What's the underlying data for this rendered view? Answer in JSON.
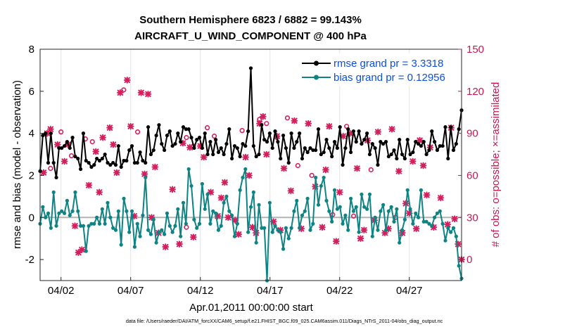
{
  "chart_data": {
    "type": "line",
    "title_line1": "Southern Hemisphere 6823 / 6882 = 99.143%",
    "title_line2": "AIRCRAFT_U_WIND_COMPONENT @ 400 hPa",
    "ylabel": "rmse and bias (model - observation)",
    "ylabel_right": "# of obs: o=possible; ×=assimilated",
    "xlabel": "Apr.01,2011 00:00:00 start",
    "footnote": "data file: /Users/raeder/DAI/ATM_forcXX/CAM6_setup/f.e21.FHIST_BGC.f09_025.CAM6assim.011/Diags_NTrS_2011-04/obs_diag_output.nc",
    "xlim": [
      0.5,
      30.75
    ],
    "ylim": [
      -3,
      8
    ],
    "ylim_right": [
      -15,
      150
    ],
    "yticks": [
      -2,
      0,
      2,
      4,
      6,
      8
    ],
    "yticks_right": [
      0,
      30,
      60,
      90,
      120,
      150
    ],
    "xticks": [
      2,
      7,
      12,
      17,
      22,
      27
    ],
    "xtick_labels": [
      "04/02",
      "04/07",
      "04/12",
      "04/17",
      "04/22",
      "04/27"
    ],
    "zero_line": 0,
    "colors": {
      "rmse": "#000000",
      "bias": "#0e8383",
      "obs": "#d61e5e",
      "legend_text": "#0a4fe0",
      "right_axis": "#c8174d"
    },
    "series": [
      {
        "name": "rmse grand pr = 3.3318",
        "key": "rmse",
        "values": [
          2.2,
          3.9,
          4.0,
          2.6,
          4.0,
          2.6,
          1.9,
          3.3,
          3.3,
          3.4,
          3.6,
          3.3,
          3.8,
          2.9,
          2.8,
          2.3,
          4.0,
          2.7,
          2.6,
          2.4,
          2.5,
          2.8,
          2.7,
          2.8,
          3.0,
          2.6,
          2.5,
          2.6,
          2.5,
          3.4,
          2.4,
          2.7,
          2.7,
          3.2,
          3.4,
          2.6,
          2.6,
          3.1,
          2.7,
          2.6,
          4.3,
          3.0,
          3.2,
          3.9,
          4.4,
          3.5,
          3.2,
          3.9,
          4.1,
          3.4,
          3.5,
          4.0,
          3.6,
          4.3,
          4.2,
          4.2,
          3.8,
          3.3,
          3.7,
          3.8,
          3.3,
          4.0,
          3.0,
          3.6,
          3.0,
          3.7,
          3.1,
          3.3,
          3.0,
          3.5,
          4.2,
          2.8,
          3.4,
          3.3,
          2.9,
          3.5,
          3.4,
          4.1,
          7.1,
          3.4,
          2.9,
          3.0,
          4.4,
          3.7,
          3.6,
          4.0,
          3.3,
          4.1,
          3.6,
          2.8,
          3.9,
          3.3,
          2.6,
          4.0,
          3.3,
          3.6,
          4.0,
          2.8,
          3.3,
          3.1,
          3.3,
          3.2,
          3.2,
          4.2,
          3.0,
          3.1,
          3.7,
          3.3,
          2.9,
          3.6,
          3.3,
          4.3,
          2.5,
          3.3,
          4.2,
          3.1,
          4.1,
          3.6,
          4.1,
          3.5,
          3.7,
          4.0,
          3.0,
          3.5,
          3.3,
          2.5,
          3.6,
          3.5,
          3.6,
          2.9,
          3.0,
          3.2,
          2.8,
          3.7,
          3.0,
          2.8,
          3.7,
          3.0,
          3.1,
          3.6,
          3.5,
          3.4,
          3.6,
          3.0,
          3.2,
          4.1,
          3.6,
          3.2,
          3.4,
          3.4,
          4.3,
          2.8,
          4.3,
          3.2,
          3.5,
          4.2,
          5.1
        ]
      },
      {
        "name": "bias grand pr = 0.12956",
        "key": "bias",
        "values": [
          -0.3,
          0.5,
          0.0,
          0.2,
          -0.5,
          1.2,
          -0.4,
          0.2,
          0.3,
          0.2,
          0.8,
          0.1,
          0.3,
          1.2,
          0.3,
          -0.4,
          -0.4,
          -1.6,
          -0.4,
          -0.3,
          -0.3,
          0.0,
          -0.3,
          0.4,
          -0.3,
          0.7,
          0.0,
          -0.5,
          -0.6,
          0.3,
          -1.3,
          0.9,
          0.3,
          -0.7,
          0.3,
          -1.4,
          -0.3,
          -0.9,
          0.1,
          1.9,
          -0.6,
          -0.8,
          -0.1,
          -1.2,
          -0.7,
          -0.6,
          -0.8,
          0.2,
          -0.4,
          -0.7,
          -0.4,
          0.4,
          -0.9,
          0.7,
          -0.3,
          2.3,
          1.5,
          -0.1,
          -0.5,
          -0.3,
          1.6,
          0.4,
          1.1,
          -0.3,
          0.3,
          0.2,
          -0.6,
          -0.4,
          0.7,
          1.0,
          0.3,
          0.1,
          -0.9,
          -0.3,
          1.3,
          1.9,
          2.3,
          -0.7,
          0.5,
          1.2,
          -1.2,
          0.6,
          -0.5,
          -0.5,
          -3.0,
          0.7,
          -0.7,
          -0.4,
          -0.6,
          -0.7,
          -1.5,
          -0.5,
          -1.0,
          -0.5,
          0.3,
          0.8,
          -0.5,
          0.1,
          0.3,
          0.9,
          -0.6,
          -0.3,
          1.9,
          0.6,
          1.5,
          1.9,
          0.8,
          0.3,
          -0.2,
          1.3,
          0.4,
          0.5,
          -0.3,
          0.1,
          -0.6,
          0.9,
          0.3,
          0.5,
          -0.7,
          1.1,
          0.5,
          0.4,
          1.1,
          -0.9,
          0.0,
          -0.6,
          0.3,
          0.6,
          -0.6,
          0.3,
          0.5,
          -0.2,
          0.4,
          -1.2,
          -0.6,
          -0.1,
          1.3,
          0.4,
          -0.3,
          0.2,
          0.0,
          1.3,
          -0.2,
          -0.2,
          -0.3,
          -0.4,
          0.0,
          0.2,
          0.3,
          -0.3,
          -1.1,
          -0.5,
          -0.7,
          -0.5,
          -0.9,
          -2.3,
          -2.9
        ]
      }
    ],
    "obs_possible": [
      [
        1.25,
        65
      ],
      [
        2.0,
        91
      ],
      [
        2.75,
        74
      ],
      [
        3.75,
        86
      ],
      [
        4.25,
        84
      ],
      [
        6.5,
        121
      ],
      [
        7.5,
        91
      ],
      [
        11.0,
        87
      ],
      [
        11.5,
        81
      ],
      [
        12.5,
        94
      ],
      [
        13.0,
        88
      ],
      [
        15.0,
        92
      ],
      [
        16.25,
        100
      ],
      [
        16.75,
        97
      ],
      [
        17.5,
        87
      ],
      [
        18.25,
        101
      ],
      [
        19.0,
        67
      ],
      [
        20.0,
        60
      ],
      [
        22.5,
        95
      ],
      [
        24.25,
        64
      ],
      [
        11.0,
        23
      ],
      [
        21.5,
        32
      ],
      [
        23.0,
        31
      ],
      [
        26.0,
        30
      ]
    ],
    "obs_assimilated": [
      [
        0.75,
        62
      ],
      [
        1.0,
        90
      ],
      [
        1.25,
        93
      ],
      [
        1.75,
        82
      ],
      [
        2.25,
        70
      ],
      [
        2.5,
        82
      ],
      [
        3.0,
        24
      ],
      [
        3.25,
        5
      ],
      [
        3.5,
        7
      ],
      [
        4.0,
        53
      ],
      [
        4.5,
        77
      ],
      [
        4.75,
        48
      ],
      [
        5.0,
        87
      ],
      [
        5.5,
        94
      ],
      [
        5.75,
        82
      ],
      [
        6.0,
        62
      ],
      [
        6.25,
        119
      ],
      [
        6.75,
        128
      ],
      [
        7.0,
        95
      ],
      [
        7.25,
        31
      ],
      [
        7.75,
        119
      ],
      [
        8.0,
        61
      ],
      [
        8.25,
        118
      ],
      [
        8.5,
        30
      ],
      [
        8.75,
        66
      ],
      [
        9.0,
        19
      ],
      [
        9.5,
        9
      ],
      [
        10.0,
        50
      ],
      [
        10.5,
        11
      ],
      [
        10.75,
        83
      ],
      [
        11.25,
        80
      ],
      [
        11.5,
        16
      ],
      [
        12.0,
        81
      ],
      [
        12.25,
        73
      ],
      [
        12.75,
        48
      ],
      [
        13.25,
        31
      ],
      [
        13.5,
        44
      ],
      [
        13.75,
        55
      ],
      [
        14.0,
        30
      ],
      [
        14.5,
        28
      ],
      [
        14.75,
        18
      ],
      [
        15.25,
        73
      ],
      [
        15.5,
        60
      ],
      [
        15.75,
        23
      ],
      [
        16.0,
        19
      ],
      [
        16.25,
        97
      ],
      [
        16.5,
        102
      ],
      [
        16.75,
        75
      ],
      [
        17.25,
        27
      ],
      [
        17.5,
        88
      ],
      [
        17.75,
        21
      ],
      [
        18.0,
        65
      ],
      [
        18.5,
        49
      ],
      [
        18.75,
        99
      ],
      [
        19.25,
        22
      ],
      [
        19.75,
        97
      ],
      [
        20.25,
        52
      ],
      [
        20.75,
        23
      ],
      [
        21.0,
        64
      ],
      [
        21.25,
        95
      ],
      [
        21.75,
        13
      ],
      [
        22.0,
        48
      ],
      [
        22.25,
        88
      ],
      [
        22.75,
        90
      ],
      [
        23.25,
        65
      ],
      [
        23.5,
        15
      ],
      [
        23.75,
        21
      ],
      [
        24.0,
        85
      ],
      [
        24.5,
        28
      ],
      [
        24.75,
        91
      ],
      [
        25.25,
        19
      ],
      [
        25.5,
        22
      ],
      [
        25.75,
        93
      ],
      [
        26.25,
        63
      ],
      [
        26.5,
        19
      ],
      [
        26.75,
        40
      ],
      [
        27.0,
        33
      ],
      [
        27.25,
        70
      ],
      [
        27.5,
        22
      ],
      [
        27.75,
        85
      ],
      [
        28.0,
        67
      ],
      [
        28.25,
        46
      ],
      [
        28.5,
        80
      ],
      [
        28.75,
        23
      ],
      [
        29.25,
        44
      ],
      [
        29.75,
        25
      ],
      [
        30.0,
        94
      ],
      [
        30.25,
        29
      ],
      [
        30.5,
        11
      ],
      [
        30.75,
        0
      ]
    ]
  }
}
